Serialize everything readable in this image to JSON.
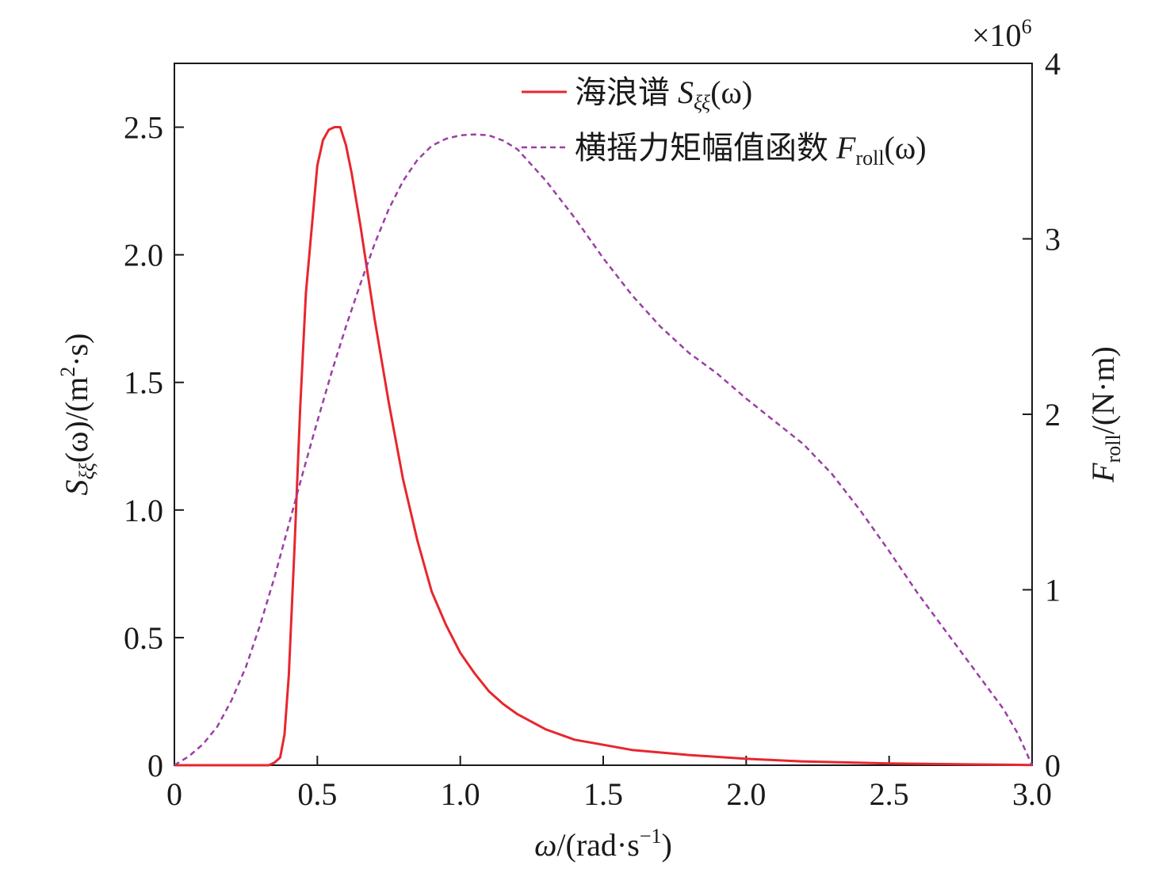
{
  "chart_data": {
    "type": "line",
    "xlabel": {
      "sym": "ω",
      "unit": "/(rad·s",
      "exp": "−1",
      "close": ")"
    },
    "ylabel_left": {
      "sym": "S",
      "sub": "ξξ",
      "mid": "(ω)/(m",
      "exp": "2",
      "tail": "·s)"
    },
    "ylabel_right": {
      "sym": "F",
      "sub": "roll",
      "tail": "/(N·m)"
    },
    "x_ticks": [
      "0",
      "0.5",
      "1.0",
      "1.5",
      "2.0",
      "2.5",
      "3.0"
    ],
    "y_left_ticks": [
      "0",
      "0.5",
      "1.0",
      "1.5",
      "2.0",
      "2.5"
    ],
    "y_right_ticks": [
      "0",
      "1",
      "2",
      "3",
      "4"
    ],
    "y_right_multiplier": {
      "base": "×10",
      "exp": "6"
    },
    "xlim": [
      0,
      3
    ],
    "ylim_left": [
      0,
      2.75
    ],
    "ylim_right": [
      0,
      4000000
    ],
    "legend_position": "top-right",
    "series": [
      {
        "label": {
          "text": "海浪谱 ",
          "sym": "S",
          "sub": "ξξ",
          "tail": "(ω)"
        },
        "color": "#e8262d",
        "style": "solid",
        "axis": "left",
        "x": [
          0,
          0.3,
          0.33,
          0.35,
          0.37,
          0.385,
          0.4,
          0.42,
          0.44,
          0.46,
          0.48,
          0.5,
          0.52,
          0.54,
          0.56,
          0.58,
          0.6,
          0.62,
          0.65,
          0.7,
          0.75,
          0.8,
          0.85,
          0.9,
          0.95,
          1.0,
          1.05,
          1.1,
          1.15,
          1.2,
          1.3,
          1.4,
          1.5,
          1.6,
          1.8,
          2.0,
          2.2,
          2.5,
          2.8,
          3.0
        ],
        "y": [
          0,
          0,
          0,
          0.01,
          0.03,
          0.12,
          0.35,
          0.85,
          1.4,
          1.85,
          2.1,
          2.35,
          2.45,
          2.49,
          2.5,
          2.5,
          2.43,
          2.32,
          2.12,
          1.75,
          1.42,
          1.12,
          0.88,
          0.68,
          0.55,
          0.44,
          0.36,
          0.29,
          0.24,
          0.2,
          0.14,
          0.1,
          0.08,
          0.06,
          0.04,
          0.025,
          0.015,
          0.007,
          0.003,
          0.001
        ]
      },
      {
        "label": {
          "text": "横摇力矩幅值函数 ",
          "sym": "F",
          "sub": "roll",
          "tail": "(ω)"
        },
        "color": "#9b3fa6",
        "style": "dashed",
        "axis": "right",
        "x": [
          0,
          0.05,
          0.1,
          0.15,
          0.2,
          0.25,
          0.3,
          0.35,
          0.4,
          0.45,
          0.5,
          0.55,
          0.6,
          0.65,
          0.7,
          0.75,
          0.8,
          0.85,
          0.9,
          0.95,
          1.0,
          1.05,
          1.1,
          1.15,
          1.2,
          1.3,
          1.4,
          1.5,
          1.6,
          1.7,
          1.8,
          1.9,
          2.0,
          2.1,
          2.2,
          2.3,
          2.4,
          2.5,
          2.6,
          2.7,
          2.8,
          2.9,
          2.95,
          3.0
        ],
        "y": [
          0,
          50000,
          120000,
          220000,
          370000,
          560000,
          800000,
          1070000,
          1370000,
          1670000,
          1960000,
          2240000,
          2500000,
          2740000,
          2970000,
          3170000,
          3330000,
          3450000,
          3530000,
          3570000,
          3590000,
          3595000,
          3590000,
          3560000,
          3510000,
          3330000,
          3120000,
          2890000,
          2680000,
          2500000,
          2350000,
          2230000,
          2090000,
          1960000,
          1830000,
          1660000,
          1450000,
          1220000,
          980000,
          760000,
          540000,
          320000,
          180000,
          0
        ]
      }
    ]
  }
}
